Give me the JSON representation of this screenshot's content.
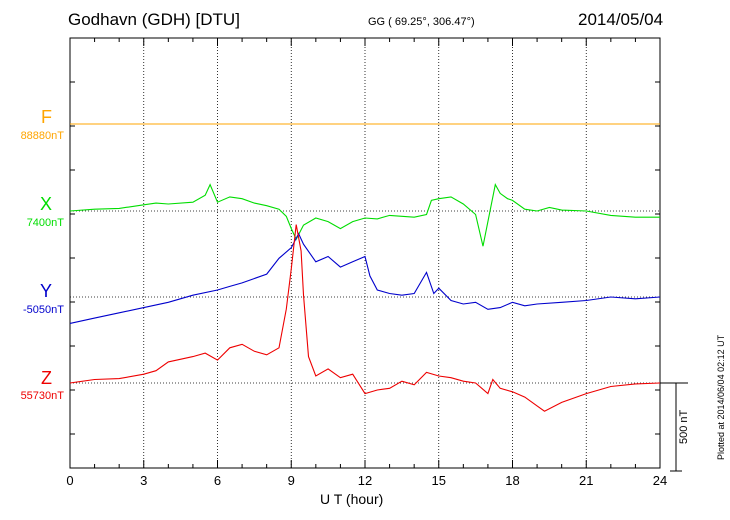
{
  "header": {
    "title": "Godhavn (GDH)  [DTU]",
    "coords": "GG ( 69.25°, 306.47°)",
    "date": "2014/05/04"
  },
  "footer": {
    "xlabel": "U T (hour)",
    "plotted": "Plotted at 2014/06/04 02:12 UT",
    "scale_label": "500 nT"
  },
  "colors": {
    "F": "#ffa500",
    "X": "#00dd00",
    "Y": "#0000cc",
    "Z": "#ee0000"
  },
  "chart_data": {
    "type": "line",
    "title": "Godhavn (GDH)  [DTU]",
    "xlabel": "U T (hour)",
    "ylabel": "",
    "xlim": [
      0,
      24
    ],
    "xticks": [
      "0",
      "3",
      "6",
      "9",
      "12",
      "15",
      "18",
      "21",
      "24"
    ],
    "scale_bar_nT": 500,
    "grid": true,
    "series": [
      {
        "name": "F",
        "baseline_label": "88880nT",
        "x": [
          0,
          24
        ],
        "values": [
          0,
          0
        ]
      },
      {
        "name": "X",
        "baseline_label": "7400nT",
        "x": [
          0,
          1,
          2,
          3,
          3.5,
          4,
          5,
          5.5,
          5.7,
          6,
          6.5,
          7,
          7.5,
          8,
          8.5,
          8.8,
          9,
          9.2,
          9.5,
          10,
          10.5,
          11,
          11.5,
          12,
          12.5,
          13,
          13.5,
          14,
          14.5,
          14.7,
          15,
          15.5,
          16,
          16.5,
          16.8,
          17,
          17.3,
          17.5,
          17.8,
          18,
          18.5,
          19,
          19.5,
          20,
          21,
          22,
          23,
          24
        ],
        "values": [
          0,
          10,
          15,
          35,
          45,
          40,
          50,
          90,
          150,
          50,
          80,
          70,
          45,
          30,
          10,
          -30,
          -100,
          -160,
          -80,
          -40,
          -60,
          -100,
          -60,
          -40,
          -45,
          -25,
          -30,
          -35,
          -20,
          60,
          70,
          80,
          40,
          -20,
          -200,
          -60,
          150,
          100,
          70,
          60,
          10,
          0,
          20,
          5,
          0,
          -25,
          -35,
          -35
        ]
      },
      {
        "name": "Y",
        "baseline_label": "-5050nT",
        "x": [
          0,
          1,
          2,
          3,
          4,
          5,
          6,
          6.5,
          7,
          8,
          8.5,
          9,
          9.3,
          9.5,
          10,
          10.5,
          11,
          11.5,
          12,
          12.2,
          12.5,
          13,
          13.5,
          14,
          14.5,
          14.8,
          15,
          15.5,
          16,
          16.5,
          17,
          17.5,
          18,
          18.5,
          19,
          20,
          21,
          22,
          23,
          24
        ],
        "values": [
          -150,
          -120,
          -90,
          -60,
          -30,
          10,
          40,
          60,
          80,
          130,
          220,
          280,
          360,
          300,
          200,
          230,
          170,
          200,
          230,
          120,
          40,
          20,
          10,
          20,
          140,
          20,
          50,
          -20,
          -40,
          -30,
          -70,
          -60,
          -30,
          -50,
          -40,
          -30,
          -20,
          0,
          -10,
          0
        ]
      },
      {
        "name": "Z",
        "baseline_label": "55730nT",
        "x": [
          0,
          1,
          2,
          3,
          3.5,
          4,
          5,
          5.5,
          6,
          6.5,
          7,
          7.5,
          8,
          8.5,
          8.8,
          9,
          9.2,
          9.4,
          9.5,
          9.7,
          10,
          10.5,
          11,
          11.5,
          12,
          12.5,
          13,
          13.5,
          14,
          14.5,
          15,
          15.5,
          16,
          16.5,
          17,
          17.2,
          17.5,
          18,
          18.5,
          19,
          19.3,
          20,
          21,
          22,
          23,
          24
        ],
        "values": [
          0,
          20,
          25,
          50,
          70,
          120,
          150,
          170,
          130,
          200,
          220,
          180,
          160,
          200,
          420,
          650,
          900,
          750,
          500,
          150,
          40,
          80,
          30,
          50,
          -60,
          -40,
          -30,
          10,
          -10,
          60,
          40,
          30,
          10,
          0,
          -60,
          20,
          -30,
          -50,
          -80,
          -130,
          -160,
          -110,
          -60,
          -20,
          -5,
          0
        ]
      }
    ]
  }
}
